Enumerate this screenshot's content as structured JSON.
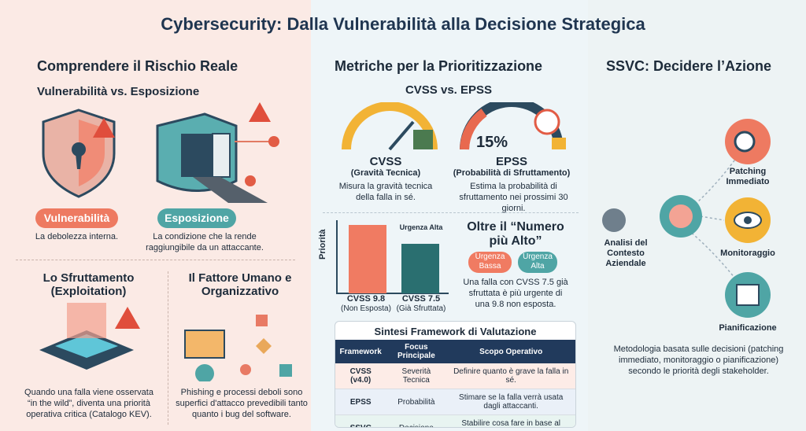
{
  "header": {
    "title": "Cybersecurity: Dalla Vulnerabilità alla Decisione Strategica"
  },
  "left": {
    "title": "Comprendere il Rischio Reale",
    "subtitle": "Vulnerabilità vs. Esposizione",
    "cards": [
      {
        "tag": "Vulnerabilità",
        "text": "La debolezza interna."
      },
      {
        "tag": "Esposizione",
        "text": "La condizione che la rende raggiungibile da un attaccante."
      }
    ],
    "sections": [
      {
        "title": "Lo Sfruttamento (Exploitation)",
        "text": "Quando una falla viene osservata “in the wild”, diventa una priorità operativa critica (Catalogo KEV)."
      },
      {
        "title": "Il Fattore Umano e Organizzativo",
        "text": "Phishing e processi deboli sono superfici d'attacco prevedibili tanto quanto i bug del software."
      }
    ]
  },
  "middle": {
    "title": "Metriche per la Prioritizzazione",
    "subtitle": "CVSS vs. EPSS",
    "metrics": [
      {
        "name": "CVSS",
        "label": "(Gravità Tecnica)",
        "text": "Misura la gravità tecnica della falla in sé."
      },
      {
        "name": "EPSS",
        "gauge": "15%",
        "label": "(Probabilità di Sfruttamento)",
        "text": "Estima la probabilità di sfruttamento nei prossimi 30 giorni."
      }
    ],
    "priority_chart": {
      "axis_label": "Priorità",
      "bars": [
        {
          "label": "CVSS 9.8",
          "note": "(Non Esposta)"
        },
        {
          "label": "CVSS 7.5",
          "note": "(Già Sfruttata)",
          "tag": "Urgenza Alta"
        }
      ]
    },
    "beyond": {
      "title": "Oltre il “Numero più Alto”",
      "tags": [
        "Urgenza Bassa",
        "Urgenza Alta"
      ],
      "text": "Una falla con CVSS 7.5 già sfruttata è più urgente di una 9.8 non esposta."
    },
    "table": {
      "title": "Sintesi Framework di Valutazione",
      "columns": [
        "Framework",
        "Focus Principale",
        "Scopo Operativo"
      ],
      "rows": [
        [
          "CVSS (v4.0)",
          "Severità Tecnica",
          "Definire quanto è grave la falla in sé."
        ],
        [
          "EPSS",
          "Probabilità",
          "Stimare se la falla verrà usata dagli attaccanti."
        ],
        [
          "SSVC",
          "Decisione",
          "Stabilire cosa fare in base al contesto aziendale."
        ]
      ]
    }
  },
  "right": {
    "title": "SSVC: Decidere l’Azione",
    "input": "Analisi del Contesto Aziendale",
    "actions": [
      "Patching Immediato",
      "Monitoraggio",
      "Pianificazione"
    ],
    "text": "Metodologia basata sulle decisioni (patching immediato, monitoraggio o pianificazione) secondo le priorità degli stakeholder."
  }
}
